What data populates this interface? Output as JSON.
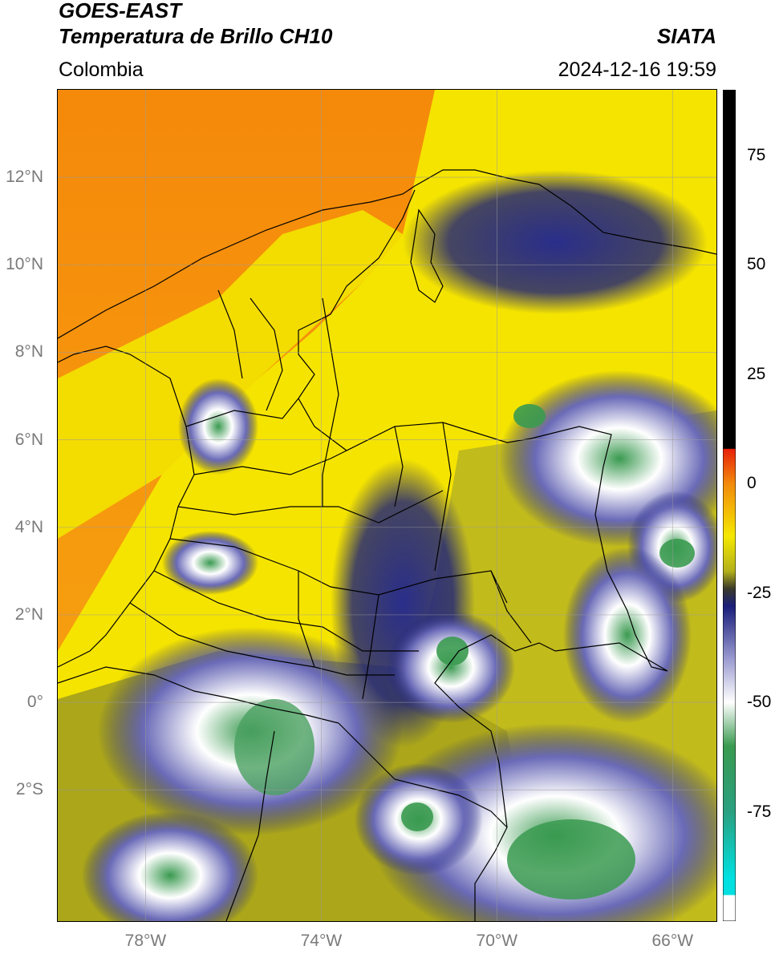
{
  "header": {
    "satellite": "GOES-EAST",
    "product": "Temperatura de Brillo CH10",
    "agency": "SIATA",
    "region": "Colombia",
    "datetime": "2024-12-16 19:59"
  },
  "map": {
    "lon_range": [
      -80,
      -65
    ],
    "lat_range": [
      -5,
      14
    ],
    "lat_ticks": [
      {
        "value": 12,
        "label": "12°N"
      },
      {
        "value": 10,
        "label": "10°N"
      },
      {
        "value": 8,
        "label": "8°N"
      },
      {
        "value": 6,
        "label": "6°N"
      },
      {
        "value": 4,
        "label": "4°N"
      },
      {
        "value": 2,
        "label": "2°N"
      },
      {
        "value": 0,
        "label": "0°"
      },
      {
        "value": -2,
        "label": "2°S"
      }
    ],
    "lon_ticks": [
      {
        "value": -78,
        "label": "78°W"
      },
      {
        "value": -74,
        "label": "74°W"
      },
      {
        "value": -70,
        "label": "70°W"
      },
      {
        "value": -66,
        "label": "66°W"
      }
    ],
    "gridlines": true,
    "colors": {
      "sea_warm": "#f7930c",
      "land_warm": "#f5e800",
      "olive": "#b4b11b",
      "cold_blue": "#1a1e7a",
      "very_cold_white": "#ffffff",
      "coldest_green": "#3a9a50"
    }
  },
  "colorbar": {
    "range": [
      -100,
      90
    ],
    "ticks": [
      {
        "value": 75,
        "label": "75"
      },
      {
        "value": 50,
        "label": "50"
      },
      {
        "value": 25,
        "label": "25"
      },
      {
        "value": 0,
        "label": "0"
      },
      {
        "value": -25,
        "label": "-25"
      },
      {
        "value": -50,
        "label": "-50"
      },
      {
        "value": -75,
        "label": "-75"
      }
    ],
    "stops": [
      {
        "value": 90,
        "color": "#000000"
      },
      {
        "value": 8,
        "color": "#000000"
      },
      {
        "value": 7.9,
        "color": "#e8210a"
      },
      {
        "value": 0,
        "color": "#f28a0c"
      },
      {
        "value": -12,
        "color": "#f5e800"
      },
      {
        "value": -20,
        "color": "#b4b11b"
      },
      {
        "value": -24,
        "color": "#3a3a2a"
      },
      {
        "value": -28,
        "color": "#1a1e7a"
      },
      {
        "value": -40,
        "color": "#9a9ad0"
      },
      {
        "value": -50,
        "color": "#ffffff"
      },
      {
        "value": -60,
        "color": "#3a9a50"
      },
      {
        "value": -75,
        "color": "#2aa080"
      },
      {
        "value": -90,
        "color": "#00e0e0"
      },
      {
        "value": -94,
        "color": "#00e0e0"
      },
      {
        "value": -94.1,
        "color": "#ffffff"
      },
      {
        "value": -100,
        "color": "#ffffff"
      }
    ]
  }
}
